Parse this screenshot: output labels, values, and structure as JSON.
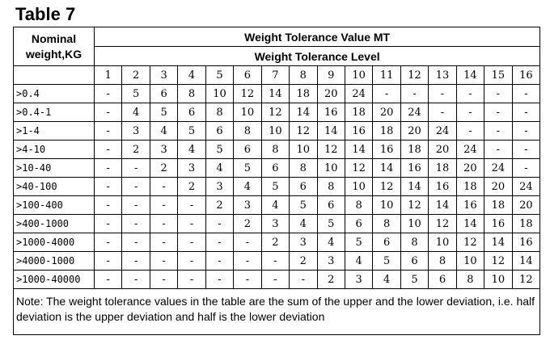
{
  "title": "Table 7",
  "header": {
    "nominal": "Nominal weight,KG",
    "group": "Weight Tolerance Value MT",
    "level": "Weight Tolerance Level"
  },
  "levels": [
    "1",
    "2",
    "3",
    "4",
    "5",
    "6",
    "7",
    "8",
    "9",
    "10",
    "11",
    "12",
    "13",
    "14",
    "15",
    "16"
  ],
  "rows": [
    {
      "label": ">0.4",
      "values": [
        "-",
        "5",
        "6",
        "8",
        "10",
        "12",
        "14",
        "18",
        "20",
        "24",
        "-",
        "-",
        "-",
        "-",
        "-",
        "-"
      ]
    },
    {
      "label": ">0.4-1",
      "values": [
        "-",
        "4",
        "5",
        "6",
        "8",
        "10",
        "12",
        "14",
        "16",
        "18",
        "20",
        "24",
        "-",
        "-",
        "-",
        "-"
      ]
    },
    {
      "label": ">1-4",
      "values": [
        "-",
        "3",
        "4",
        "5",
        "6",
        "8",
        "10",
        "12",
        "14",
        "16",
        "18",
        "20",
        "24",
        "-",
        "-",
        "-"
      ]
    },
    {
      "label": ">4-10",
      "values": [
        "-",
        "2",
        "3",
        "4",
        "5",
        "6",
        "8",
        "10",
        "12",
        "14",
        "16",
        "18",
        "20",
        "24",
        "-",
        "-"
      ]
    },
    {
      "label": ">10-40",
      "values": [
        "-",
        "-",
        "2",
        "3",
        "4",
        "5",
        "6",
        "8",
        "10",
        "12",
        "14",
        "16",
        "18",
        "20",
        "24",
        "-"
      ]
    },
    {
      "label": ">40-100",
      "values": [
        "-",
        "-",
        "-",
        "2",
        "3",
        "4",
        "5",
        "6",
        "8",
        "10",
        "12",
        "14",
        "16",
        "18",
        "20",
        "24"
      ]
    },
    {
      "label": ">100-400",
      "values": [
        "-",
        "-",
        "-",
        "-",
        "2",
        "3",
        "4",
        "5",
        "6",
        "8",
        "10",
        "12",
        "14",
        "16",
        "18",
        "20"
      ]
    },
    {
      "label": ">400-1000",
      "values": [
        "-",
        "-",
        "-",
        "-",
        "-",
        "2",
        "3",
        "4",
        "5",
        "6",
        "8",
        "10",
        "12",
        "14",
        "16",
        "18"
      ]
    },
    {
      "label": ">1000-4000",
      "values": [
        "-",
        "-",
        "-",
        "-",
        "-",
        "-",
        "2",
        "3",
        "4",
        "5",
        "6",
        "8",
        "10",
        "12",
        "14",
        "16"
      ]
    },
    {
      "label": ">4000-1000",
      "values": [
        "-",
        "-",
        "-",
        "-",
        "-",
        "-",
        "-",
        "2",
        "3",
        "4",
        "5",
        "6",
        "8",
        "10",
        "12",
        "14"
      ]
    },
    {
      "label": ">1000-40000",
      "values": [
        "-",
        "-",
        "-",
        "-",
        "-",
        "-",
        "-",
        "-",
        "2",
        "3",
        "4",
        "5",
        "6",
        "8",
        "10",
        "12"
      ]
    }
  ],
  "note": "Note: The weight tolerance values in the table are the sum of the upper and the lower deviation, i.e. half deviation is the upper deviation and half is the lower deviation"
}
